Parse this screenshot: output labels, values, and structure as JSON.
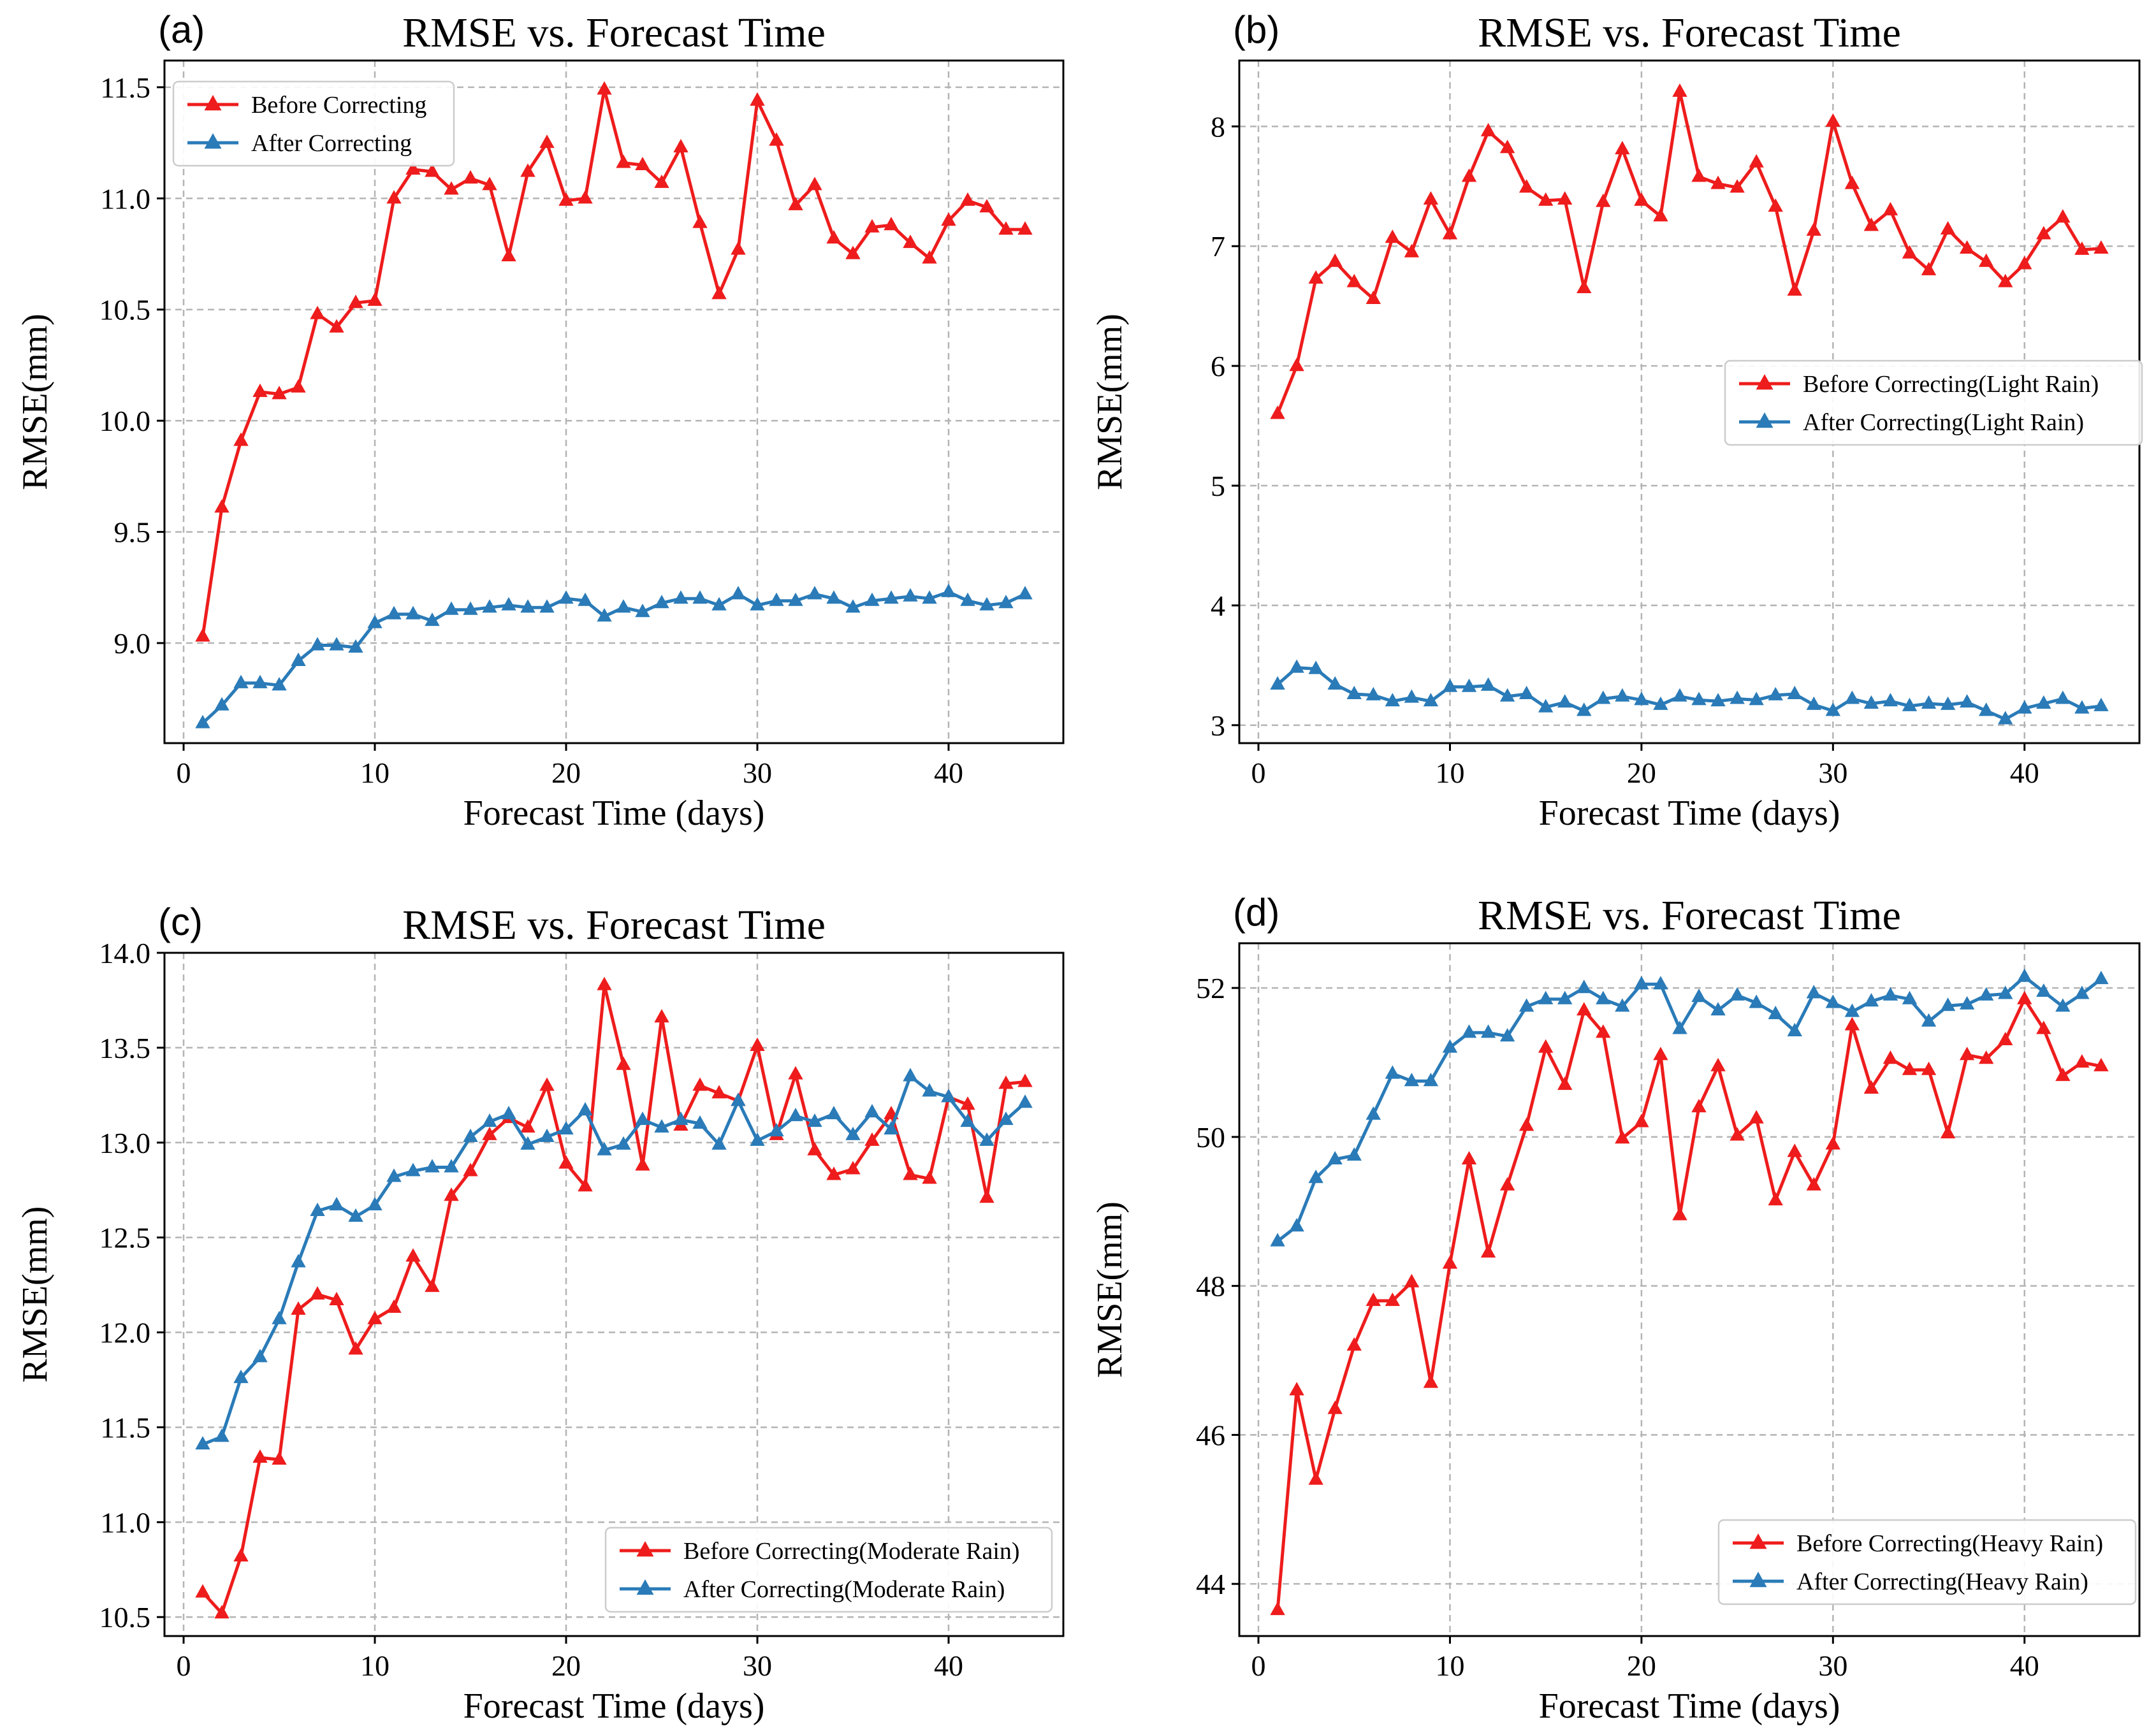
{
  "figure": {
    "colors": {
      "before": "#ee1c1c",
      "after": "#2a7bb8",
      "grid": "#b4b4b4"
    }
  },
  "chart_data": [
    {
      "panel": "(a)",
      "type": "line",
      "title": "RMSE vs. Forecast Time",
      "xlabel": "Forecast Time (days)",
      "ylabel": "RMSE(mm)",
      "xlim": [
        -1,
        46
      ],
      "ylim": [
        8.55,
        11.62
      ],
      "xticks": [
        0,
        10,
        20,
        30,
        40
      ],
      "yticks": [
        9.0,
        9.5,
        10.0,
        10.5,
        11.0,
        11.5
      ],
      "ytick_labels": [
        "9.0",
        "9.5",
        "10.0",
        "10.5",
        "11.0",
        "11.5"
      ],
      "grid": true,
      "legend_position": "top-left",
      "x": [
        1,
        2,
        3,
        4,
        5,
        6,
        7,
        8,
        9,
        10,
        11,
        12,
        13,
        14,
        15,
        16,
        17,
        18,
        19,
        20,
        21,
        22,
        23,
        24,
        25,
        26,
        27,
        28,
        29,
        30,
        31,
        32,
        33,
        34,
        35,
        36,
        37,
        38,
        39,
        40,
        41,
        42,
        43,
        44
      ],
      "series": [
        {
          "name": "Before Correcting",
          "color": "#ee1c1c",
          "values": [
            9.03,
            9.61,
            9.91,
            10.13,
            10.12,
            10.15,
            10.48,
            10.42,
            10.53,
            10.54,
            11.0,
            11.13,
            11.12,
            11.04,
            11.09,
            11.06,
            10.74,
            11.12,
            11.25,
            10.99,
            11.0,
            11.49,
            11.16,
            11.15,
            11.07,
            11.23,
            10.89,
            10.57,
            10.77,
            11.44,
            11.26,
            10.97,
            11.06,
            10.82,
            10.75,
            10.87,
            10.88,
            10.8,
            10.73,
            10.9,
            10.99,
            10.96,
            10.86,
            10.86
          ]
        },
        {
          "name": "After Correcting",
          "color": "#2a7bb8",
          "values": [
            8.64,
            8.72,
            8.82,
            8.82,
            8.81,
            8.92,
            8.99,
            8.99,
            8.98,
            9.09,
            9.13,
            9.13,
            9.1,
            9.15,
            9.15,
            9.16,
            9.17,
            9.16,
            9.16,
            9.2,
            9.19,
            9.12,
            9.16,
            9.14,
            9.18,
            9.2,
            9.2,
            9.17,
            9.22,
            9.17,
            9.19,
            9.19,
            9.22,
            9.2,
            9.16,
            9.19,
            9.2,
            9.21,
            9.2,
            9.23,
            9.19,
            9.17,
            9.18,
            9.22
          ]
        }
      ]
    },
    {
      "panel": "(b)",
      "type": "line",
      "title": "RMSE vs. Forecast Time",
      "xlabel": "Forecast Time (days)",
      "ylabel": "RMSE(mm)",
      "xlim": [
        -1,
        46
      ],
      "ylim": [
        2.85,
        8.55
      ],
      "xticks": [
        0,
        10,
        20,
        30,
        40
      ],
      "yticks": [
        3,
        4,
        5,
        6,
        7,
        8
      ],
      "ytick_labels": [
        "3",
        "4",
        "5",
        "6",
        "7",
        "8"
      ],
      "grid": true,
      "legend_position": "center-right",
      "x": [
        1,
        2,
        3,
        4,
        5,
        6,
        7,
        8,
        9,
        10,
        11,
        12,
        13,
        14,
        15,
        16,
        17,
        18,
        19,
        20,
        21,
        22,
        23,
        24,
        25,
        26,
        27,
        28,
        29,
        30,
        31,
        32,
        33,
        34,
        35,
        36,
        37,
        38,
        39,
        40,
        41,
        42,
        43,
        44
      ],
      "series": [
        {
          "name": "Before Correcting(Light Rain)",
          "color": "#ee1c1c",
          "values": [
            5.6,
            6.0,
            6.73,
            6.87,
            6.7,
            6.56,
            7.07,
            6.95,
            7.39,
            7.1,
            7.58,
            7.96,
            7.82,
            7.49,
            7.38,
            7.39,
            6.65,
            7.37,
            7.81,
            7.38,
            7.25,
            8.29,
            7.58,
            7.52,
            7.49,
            7.7,
            7.33,
            6.63,
            7.13,
            8.04,
            7.52,
            7.17,
            7.3,
            6.94,
            6.8,
            7.14,
            6.98,
            6.87,
            6.7,
            6.85,
            7.1,
            7.24,
            6.97,
            6.98
          ]
        },
        {
          "name": "After Correcting(Light Rain)",
          "color": "#2a7bb8",
          "values": [
            3.34,
            3.48,
            3.47,
            3.34,
            3.26,
            3.25,
            3.2,
            3.23,
            3.2,
            3.32,
            3.32,
            3.33,
            3.24,
            3.26,
            3.15,
            3.19,
            3.12,
            3.22,
            3.24,
            3.21,
            3.17,
            3.24,
            3.21,
            3.2,
            3.22,
            3.21,
            3.25,
            3.26,
            3.17,
            3.12,
            3.22,
            3.18,
            3.2,
            3.16,
            3.18,
            3.17,
            3.19,
            3.12,
            3.05,
            3.14,
            3.18,
            3.22,
            3.14,
            3.16
          ]
        }
      ]
    },
    {
      "panel": "(c)",
      "type": "line",
      "title": "RMSE vs. Forecast Time",
      "xlabel": "Forecast Time (days)",
      "ylabel": "RMSE(mm)",
      "xlim": [
        -1,
        46
      ],
      "ylim": [
        10.4,
        14.0
      ],
      "xticks": [
        0,
        10,
        20,
        30,
        40
      ],
      "yticks": [
        10.5,
        11.0,
        11.5,
        12.0,
        12.5,
        13.0,
        13.5,
        14.0
      ],
      "ytick_labels": [
        "10.5",
        "11.0",
        "11.5",
        "12.0",
        "12.5",
        "13.0",
        "13.5",
        "14.0"
      ],
      "grid": true,
      "legend_position": "bottom-right",
      "x": [
        1,
        2,
        3,
        4,
        5,
        6,
        7,
        8,
        9,
        10,
        11,
        12,
        13,
        14,
        15,
        16,
        17,
        18,
        19,
        20,
        21,
        22,
        23,
        24,
        25,
        26,
        27,
        28,
        29,
        30,
        31,
        32,
        33,
        34,
        35,
        36,
        37,
        38,
        39,
        40,
        41,
        42,
        43,
        44
      ],
      "series": [
        {
          "name": "Before Correcting(Moderate Rain)",
          "color": "#ee1c1c",
          "values": [
            10.63,
            10.52,
            10.82,
            11.34,
            11.33,
            12.12,
            12.2,
            12.17,
            11.91,
            12.07,
            12.13,
            12.4,
            12.24,
            12.72,
            12.85,
            13.04,
            13.13,
            13.08,
            13.3,
            12.89,
            12.77,
            13.83,
            13.41,
            12.88,
            13.66,
            13.09,
            13.3,
            13.26,
            13.22,
            13.51,
            13.04,
            13.36,
            12.96,
            12.83,
            12.86,
            13.01,
            13.15,
            12.83,
            12.81,
            13.24,
            13.2,
            12.71,
            13.31,
            13.32
          ]
        },
        {
          "name": "After Correcting(Moderate Rain)",
          "color": "#2a7bb8",
          "values": [
            11.41,
            11.45,
            11.76,
            11.87,
            12.07,
            12.37,
            12.64,
            12.67,
            12.61,
            12.67,
            12.82,
            12.85,
            12.87,
            12.87,
            13.03,
            13.11,
            13.15,
            12.99,
            13.03,
            13.07,
            13.17,
            12.96,
            12.99,
            13.12,
            13.08,
            13.12,
            13.1,
            12.99,
            13.22,
            13.01,
            13.06,
            13.14,
            13.11,
            13.15,
            13.04,
            13.16,
            13.07,
            13.35,
            13.27,
            13.24,
            13.11,
            13.01,
            13.12,
            13.21
          ]
        }
      ]
    },
    {
      "panel": "(d)",
      "type": "line",
      "title": "RMSE vs. Forecast Time",
      "xlabel": "Forecast Time (days)",
      "ylabel": "RMSE(mm)",
      "xlim": [
        -1,
        46
      ],
      "ylim": [
        43.3,
        52.6
      ],
      "xticks": [
        0,
        10,
        20,
        30,
        40
      ],
      "yticks": [
        44,
        46,
        48,
        50,
        52
      ],
      "ytick_labels": [
        "44",
        "46",
        "48",
        "50",
        "52"
      ],
      "grid": true,
      "legend_position": "bottom-right",
      "x": [
        1,
        2,
        3,
        4,
        5,
        6,
        7,
        8,
        9,
        10,
        11,
        12,
        13,
        14,
        15,
        16,
        17,
        18,
        19,
        20,
        21,
        22,
        23,
        24,
        25,
        26,
        27,
        28,
        29,
        30,
        31,
        32,
        33,
        34,
        35,
        36,
        37,
        38,
        39,
        40,
        41,
        42,
        43,
        44
      ],
      "series": [
        {
          "name": "Before Correcting(Heavy Rain)",
          "color": "#ee1c1c",
          "values": [
            43.65,
            46.6,
            45.4,
            46.35,
            47.2,
            47.8,
            47.8,
            48.05,
            46.7,
            48.3,
            49.7,
            48.45,
            49.35,
            50.15,
            51.2,
            50.7,
            51.7,
            51.4,
            49.98,
            50.2,
            51.1,
            48.95,
            50.4,
            50.95,
            50.02,
            50.25,
            49.15,
            49.8,
            49.35,
            49.9,
            51.5,
            50.65,
            51.05,
            50.9,
            50.9,
            50.05,
            51.1,
            51.05,
            51.3,
            51.85,
            51.45,
            50.82,
            51.0,
            50.95
          ]
        },
        {
          "name": "After Correcting(Heavy Rain)",
          "color": "#2a7bb8",
          "values": [
            48.6,
            48.8,
            49.45,
            49.7,
            49.75,
            50.3,
            50.85,
            50.75,
            50.75,
            51.2,
            51.4,
            51.4,
            51.35,
            51.75,
            51.85,
            51.85,
            52.0,
            51.85,
            51.75,
            52.05,
            52.05,
            51.45,
            51.88,
            51.7,
            51.9,
            51.8,
            51.65,
            51.42,
            51.93,
            51.8,
            51.68,
            51.82,
            51.9,
            51.85,
            51.55,
            51.76,
            51.78,
            51.9,
            51.92,
            52.15,
            51.95,
            51.75,
            51.92,
            52.12
          ]
        }
      ]
    }
  ]
}
